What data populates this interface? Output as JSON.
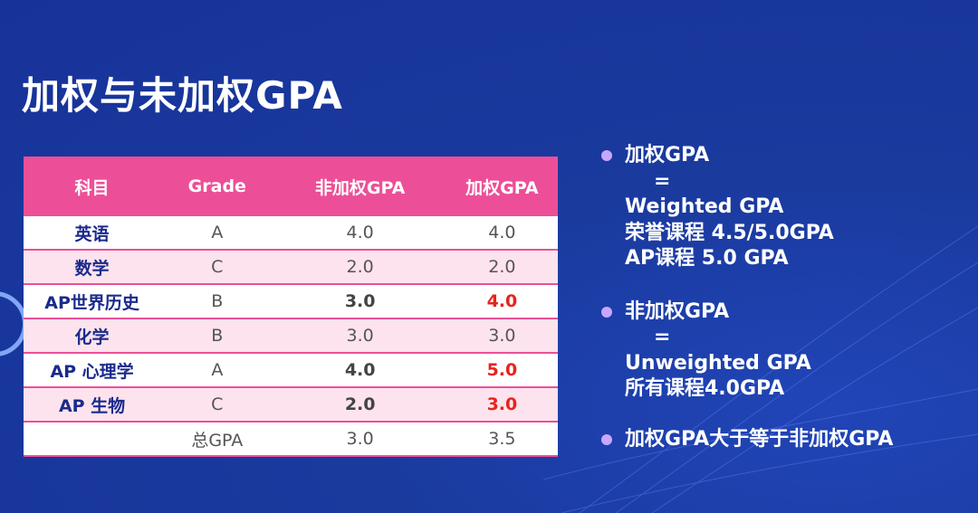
{
  "title": "加权与未加权GPA",
  "table": {
    "headers": [
      "科目",
      "Grade",
      "非加权GPA",
      "加权GPA"
    ],
    "rows": [
      {
        "subject": "英语",
        "grade": "A",
        "unweighted": "4.0",
        "weighted": "4.0"
      },
      {
        "subject": "数学",
        "grade": "C",
        "unweighted": "2.0",
        "weighted": "2.0"
      },
      {
        "subject": "AP世界历史",
        "grade": "B",
        "unweighted": "3.0",
        "weighted": "4.0"
      },
      {
        "subject": "化学",
        "grade": "B",
        "unweighted": "3.0",
        "weighted": "3.0"
      },
      {
        "subject": "AP 心理学",
        "grade": "A",
        "unweighted": "4.0",
        "weighted": "5.0"
      },
      {
        "subject": "AP 生物",
        "grade": "C",
        "unweighted": "2.0",
        "weighted": "3.0"
      },
      {
        "subject": "",
        "grade": "总GPA",
        "unweighted": "3.0",
        "weighted": "3.5"
      }
    ]
  },
  "notes": [
    {
      "heading": "加权GPA",
      "equals": "=",
      "lines": [
        "Weighted GPA",
        "荣誉课程 4.5/5.0GPA",
        "AP课程 5.0 GPA"
      ]
    },
    {
      "heading": "非加权GPA",
      "equals": "=",
      "lines": [
        "Unweighted GPA",
        "所有课程4.0GPA"
      ]
    },
    {
      "heading": "加权GPA大于等于非加权GPA"
    }
  ],
  "colors": {
    "background": "#1a3a9e",
    "header_pink": "#ec4f97",
    "row_pink": "#fde3ee",
    "subject_blue": "#1a2a8c",
    "highlight_red": "#e8231c",
    "bullet_purple": "#c8a7ff"
  }
}
